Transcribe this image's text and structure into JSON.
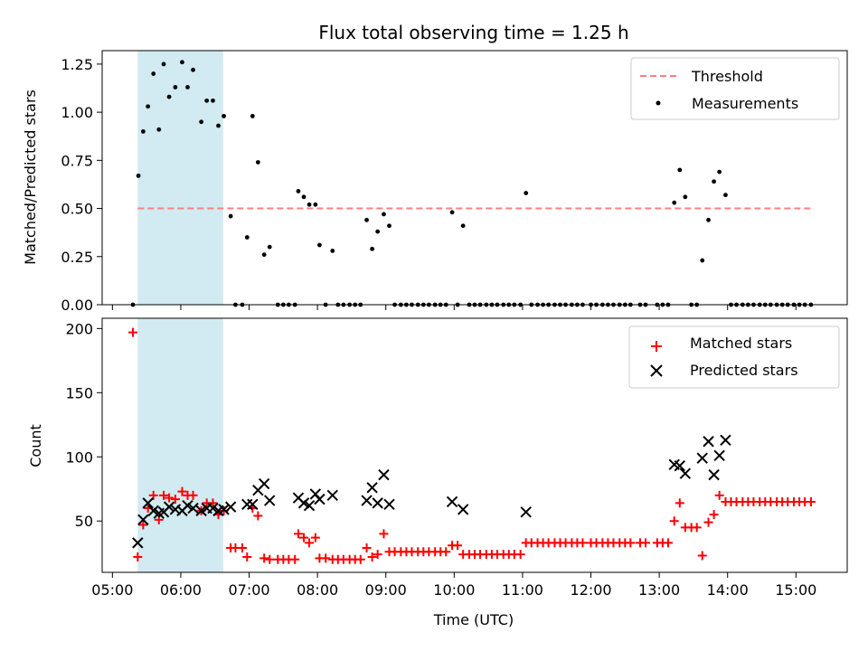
{
  "chart_data": {
    "type": "scatter",
    "title": "Flux total observing time = 1.25 h",
    "xlabel": "Time (UTC)",
    "x_ticks": [
      "05:00",
      "06:00",
      "07:00",
      "08:00",
      "09:00",
      "10:00",
      "11:00",
      "12:00",
      "13:00",
      "14:00",
      "15:00"
    ],
    "xlim_hours": [
      4.85,
      15.75
    ],
    "highlight_span_hours": [
      5.37,
      6.62
    ],
    "colors": {
      "highlight": "#add8e6",
      "threshold": "#ff7f7f",
      "matched": "#ff0000",
      "predicted": "#000000",
      "measurement": "#000000"
    },
    "top": {
      "ylabel": "Matched/Predicted stars",
      "ylim": [
        0,
        1.32
      ],
      "y_ticks": [
        "0.00",
        "0.25",
        "0.50",
        "0.75",
        "1.00",
        "1.25"
      ],
      "threshold": {
        "name": "Threshold",
        "value": 0.5,
        "x_range_hours": [
          5.37,
          15.25
        ]
      },
      "measurements": {
        "name": "Measurements",
        "points": [
          [
            5.3,
            0
          ],
          [
            5.38,
            0.67
          ],
          [
            5.45,
            0.9
          ],
          [
            5.52,
            1.03
          ],
          [
            5.6,
            1.2
          ],
          [
            5.68,
            0.91
          ],
          [
            5.75,
            1.25
          ],
          [
            5.83,
            1.08
          ],
          [
            5.92,
            1.13
          ],
          [
            6.02,
            1.26
          ],
          [
            6.1,
            1.13
          ],
          [
            6.18,
            1.22
          ],
          [
            6.3,
            0.95
          ],
          [
            6.38,
            1.06
          ],
          [
            6.47,
            1.06
          ],
          [
            6.55,
            0.93
          ],
          [
            6.63,
            0.98
          ],
          [
            6.73,
            0.46
          ],
          [
            6.8,
            0
          ],
          [
            6.9,
            0
          ],
          [
            6.97,
            0.35
          ],
          [
            7.05,
            0.98
          ],
          [
            7.13,
            0.74
          ],
          [
            7.22,
            0.26
          ],
          [
            7.3,
            0.3
          ],
          [
            7.42,
            0
          ],
          [
            7.5,
            0
          ],
          [
            7.58,
            0
          ],
          [
            7.67,
            0
          ],
          [
            7.72,
            0.59
          ],
          [
            7.8,
            0.56
          ],
          [
            7.88,
            0.52
          ],
          [
            7.97,
            0.52
          ],
          [
            8.03,
            0.31
          ],
          [
            8.12,
            0
          ],
          [
            8.22,
            0.28
          ],
          [
            8.3,
            0
          ],
          [
            8.38,
            0
          ],
          [
            8.47,
            0
          ],
          [
            8.55,
            0
          ],
          [
            8.63,
            0
          ],
          [
            8.72,
            0.44
          ],
          [
            8.8,
            0.29
          ],
          [
            8.88,
            0.38
          ],
          [
            8.97,
            0.47
          ],
          [
            9.05,
            0.41
          ],
          [
            9.13,
            0
          ],
          [
            9.22,
            0
          ],
          [
            9.3,
            0
          ],
          [
            9.38,
            0
          ],
          [
            9.47,
            0
          ],
          [
            9.55,
            0
          ],
          [
            9.63,
            0
          ],
          [
            9.72,
            0
          ],
          [
            9.8,
            0
          ],
          [
            9.88,
            0
          ],
          [
            9.97,
            0.48
          ],
          [
            10.05,
            0
          ],
          [
            10.13,
            0.41
          ],
          [
            10.22,
            0
          ],
          [
            10.3,
            0
          ],
          [
            10.38,
            0
          ],
          [
            10.47,
            0
          ],
          [
            10.55,
            0
          ],
          [
            10.63,
            0
          ],
          [
            10.72,
            0
          ],
          [
            10.8,
            0
          ],
          [
            10.88,
            0
          ],
          [
            10.97,
            0
          ],
          [
            11.05,
            0.58
          ],
          [
            11.13,
            0
          ],
          [
            11.22,
            0
          ],
          [
            11.3,
            0
          ],
          [
            11.38,
            0
          ],
          [
            11.47,
            0
          ],
          [
            11.55,
            0
          ],
          [
            11.63,
            0
          ],
          [
            11.72,
            0
          ],
          [
            11.8,
            0
          ],
          [
            11.88,
            0
          ],
          [
            12.0,
            0
          ],
          [
            12.08,
            0
          ],
          [
            12.17,
            0
          ],
          [
            12.25,
            0
          ],
          [
            12.33,
            0
          ],
          [
            12.42,
            0
          ],
          [
            12.5,
            0
          ],
          [
            12.58,
            0
          ],
          [
            12.72,
            0
          ],
          [
            12.8,
            0
          ],
          [
            12.97,
            0
          ],
          [
            13.05,
            0
          ],
          [
            13.13,
            0
          ],
          [
            13.22,
            0.53
          ],
          [
            13.3,
            0.7
          ],
          [
            13.38,
            0.56
          ],
          [
            13.47,
            0
          ],
          [
            13.55,
            0
          ],
          [
            13.63,
            0.23
          ],
          [
            13.72,
            0.44
          ],
          [
            13.8,
            0.64
          ],
          [
            13.88,
            0.69
          ],
          [
            13.97,
            0.57
          ],
          [
            14.05,
            0
          ],
          [
            14.13,
            0
          ],
          [
            14.22,
            0
          ],
          [
            14.3,
            0
          ],
          [
            14.38,
            0
          ],
          [
            14.47,
            0
          ],
          [
            14.55,
            0
          ],
          [
            14.63,
            0
          ],
          [
            14.72,
            0
          ],
          [
            14.8,
            0
          ],
          [
            14.88,
            0
          ],
          [
            14.97,
            0
          ],
          [
            15.05,
            0
          ],
          [
            15.13,
            0
          ],
          [
            15.22,
            0
          ]
        ]
      }
    },
    "bottom": {
      "ylabel": "Count",
      "ylim": [
        10,
        208
      ],
      "y_ticks": [
        "50",
        "100",
        "150",
        "200"
      ],
      "matched": {
        "name": "Matched stars",
        "points": [
          [
            5.3,
            197
          ],
          [
            5.37,
            22
          ],
          [
            5.45,
            47
          ],
          [
            5.52,
            60
          ],
          [
            5.6,
            70
          ],
          [
            5.68,
            51
          ],
          [
            5.75,
            70
          ],
          [
            5.83,
            68
          ],
          [
            5.92,
            67
          ],
          [
            6.02,
            73
          ],
          [
            6.1,
            70
          ],
          [
            6.18,
            70
          ],
          [
            6.3,
            58
          ],
          [
            6.38,
            64
          ],
          [
            6.47,
            64
          ],
          [
            6.55,
            55
          ],
          [
            6.63,
            58
          ],
          [
            6.73,
            29
          ],
          [
            6.8,
            29
          ],
          [
            6.9,
            29
          ],
          [
            6.97,
            22
          ],
          [
            7.05,
            60
          ],
          [
            7.13,
            54
          ],
          [
            7.22,
            21
          ],
          [
            7.3,
            20
          ],
          [
            7.42,
            20
          ],
          [
            7.5,
            20
          ],
          [
            7.58,
            20
          ],
          [
            7.67,
            20
          ],
          [
            7.72,
            40
          ],
          [
            7.8,
            37
          ],
          [
            7.88,
            33
          ],
          [
            7.97,
            37
          ],
          [
            8.03,
            21
          ],
          [
            8.12,
            21
          ],
          [
            8.22,
            20
          ],
          [
            8.3,
            20
          ],
          [
            8.38,
            20
          ],
          [
            8.47,
            20
          ],
          [
            8.55,
            20
          ],
          [
            8.63,
            20
          ],
          [
            8.72,
            29
          ],
          [
            8.8,
            22
          ],
          [
            8.88,
            24
          ],
          [
            8.97,
            40
          ],
          [
            9.05,
            26
          ],
          [
            9.13,
            26
          ],
          [
            9.22,
            26
          ],
          [
            9.3,
            26
          ],
          [
            9.38,
            26
          ],
          [
            9.47,
            26
          ],
          [
            9.55,
            26
          ],
          [
            9.63,
            26
          ],
          [
            9.72,
            26
          ],
          [
            9.8,
            26
          ],
          [
            9.88,
            26
          ],
          [
            9.97,
            31
          ],
          [
            10.05,
            31
          ],
          [
            10.13,
            24
          ],
          [
            10.22,
            24
          ],
          [
            10.3,
            24
          ],
          [
            10.38,
            24
          ],
          [
            10.47,
            24
          ],
          [
            10.55,
            24
          ],
          [
            10.63,
            24
          ],
          [
            10.72,
            24
          ],
          [
            10.8,
            24
          ],
          [
            10.88,
            24
          ],
          [
            10.97,
            24
          ],
          [
            11.05,
            33
          ],
          [
            11.13,
            33
          ],
          [
            11.22,
            33
          ],
          [
            11.3,
            33
          ],
          [
            11.38,
            33
          ],
          [
            11.47,
            33
          ],
          [
            11.55,
            33
          ],
          [
            11.63,
            33
          ],
          [
            11.72,
            33
          ],
          [
            11.8,
            33
          ],
          [
            11.88,
            33
          ],
          [
            12.0,
            33
          ],
          [
            12.08,
            33
          ],
          [
            12.17,
            33
          ],
          [
            12.25,
            33
          ],
          [
            12.33,
            33
          ],
          [
            12.42,
            33
          ],
          [
            12.5,
            33
          ],
          [
            12.58,
            33
          ],
          [
            12.72,
            33
          ],
          [
            12.8,
            33
          ],
          [
            12.97,
            33
          ],
          [
            13.05,
            33
          ],
          [
            13.13,
            33
          ],
          [
            13.22,
            50
          ],
          [
            13.3,
            64
          ],
          [
            13.38,
            45
          ],
          [
            13.47,
            45
          ],
          [
            13.55,
            45
          ],
          [
            13.63,
            23
          ],
          [
            13.72,
            49
          ],
          [
            13.8,
            55
          ],
          [
            13.88,
            70
          ],
          [
            13.97,
            65
          ],
          [
            14.05,
            65
          ],
          [
            14.13,
            65
          ],
          [
            14.22,
            65
          ],
          [
            14.3,
            65
          ],
          [
            14.38,
            65
          ],
          [
            14.47,
            65
          ],
          [
            14.55,
            65
          ],
          [
            14.63,
            65
          ],
          [
            14.72,
            65
          ],
          [
            14.8,
            65
          ],
          [
            14.88,
            65
          ],
          [
            14.97,
            65
          ],
          [
            15.05,
            65
          ],
          [
            15.13,
            65
          ],
          [
            15.22,
            65
          ]
        ]
      },
      "predicted": {
        "name": "Predicted stars",
        "points": [
          [
            5.37,
            33
          ],
          [
            5.45,
            51
          ],
          [
            5.52,
            64
          ],
          [
            5.6,
            58
          ],
          [
            5.68,
            56
          ],
          [
            5.75,
            57
          ],
          [
            5.83,
            61
          ],
          [
            5.92,
            59
          ],
          [
            6.02,
            58
          ],
          [
            6.1,
            62
          ],
          [
            6.18,
            60
          ],
          [
            6.3,
            58
          ],
          [
            6.38,
            60
          ],
          [
            6.47,
            60
          ],
          [
            6.55,
            58
          ],
          [
            6.63,
            59
          ],
          [
            6.73,
            61
          ],
          [
            6.97,
            63
          ],
          [
            7.05,
            63
          ],
          [
            7.13,
            74
          ],
          [
            7.22,
            79
          ],
          [
            7.3,
            66
          ],
          [
            7.72,
            68
          ],
          [
            7.8,
            64
          ],
          [
            7.88,
            62
          ],
          [
            7.97,
            71
          ],
          [
            8.03,
            67
          ],
          [
            8.22,
            70
          ],
          [
            8.72,
            66
          ],
          [
            8.8,
            76
          ],
          [
            8.88,
            64
          ],
          [
            8.97,
            86
          ],
          [
            9.05,
            63
          ],
          [
            9.97,
            65
          ],
          [
            10.13,
            59
          ],
          [
            11.05,
            57
          ],
          [
            13.22,
            94
          ],
          [
            13.3,
            93
          ],
          [
            13.38,
            87
          ],
          [
            13.63,
            99
          ],
          [
            13.72,
            112
          ],
          [
            13.8,
            86
          ],
          [
            13.88,
            101
          ],
          [
            13.97,
            113
          ]
        ]
      }
    }
  }
}
